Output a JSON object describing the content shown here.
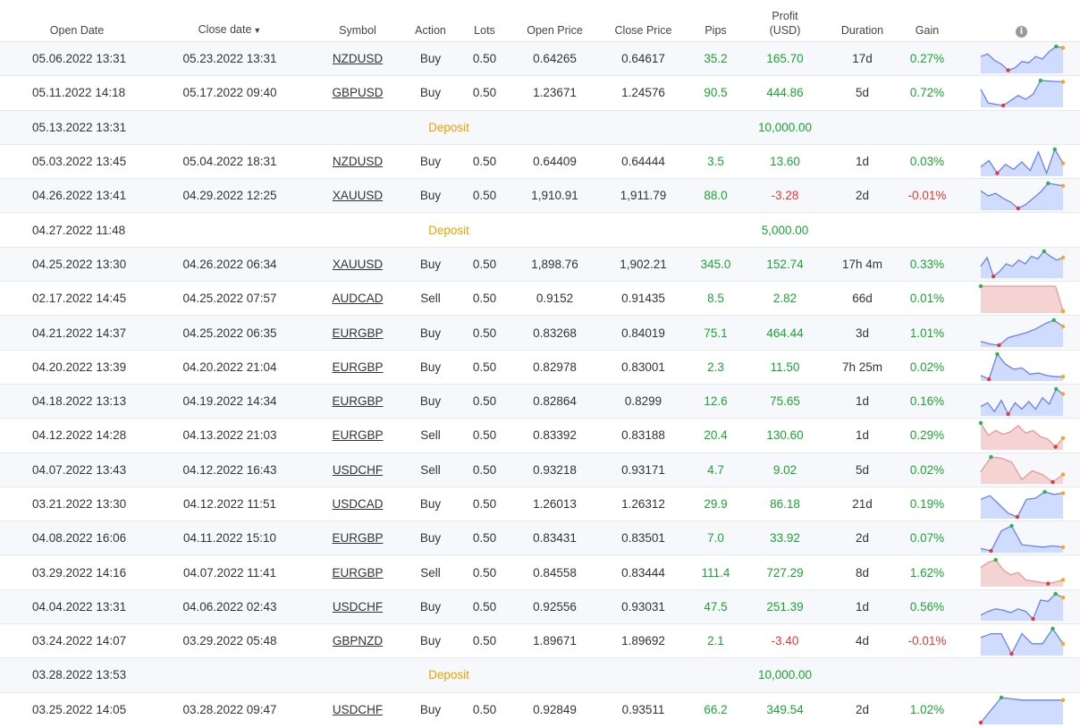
{
  "headers": {
    "open_date": "Open Date",
    "close_date": "Close date",
    "sort_glyph": "▼",
    "symbol": "Symbol",
    "action": "Action",
    "lots": "Lots",
    "open_price": "Open Price",
    "close_price": "Close Price",
    "pips": "Pips",
    "profit_l1": "Profit",
    "profit_l2": "(USD)",
    "duration": "Duration",
    "gain": "Gain",
    "info_glyph": "i"
  },
  "colors": {
    "positive": "#1aa532",
    "negative": "#e53935",
    "deposit": "#f2a000",
    "spark_up_fill": "#cfdcff",
    "spark_up_line": "#6a82e8",
    "spark_down_fill": "#f5d3d3",
    "spark_down_line": "#e29b9b"
  },
  "rows": [
    {
      "type": "trade",
      "open": "05.06.2022 13:31",
      "close": "05.23.2022 13:31",
      "symbol": "NZDUSD",
      "action": "Buy",
      "lots": "0.50",
      "open_price": "0.64265",
      "close_price": "0.64617",
      "pips": "35.2",
      "profit": "165.70",
      "duration": "17d",
      "gain": "0.27%",
      "neg": false,
      "spark": [
        0.4,
        0.3,
        0.55,
        0.7,
        0.95,
        0.85,
        0.6,
        0.65,
        0.4,
        0.5,
        0.2,
        0.0,
        0.05
      ],
      "spark_down": false
    },
    {
      "type": "trade",
      "open": "05.11.2022 14:18",
      "close": "05.17.2022 09:40",
      "symbol": "GBPUSD",
      "action": "Buy",
      "lots": "0.50",
      "open_price": "1.23671",
      "close_price": "1.24576",
      "pips": "90.5",
      "profit": "444.86",
      "duration": "5d",
      "gain": "0.72%",
      "neg": false,
      "spark": [
        0.35,
        0.9,
        0.95,
        1.0,
        0.8,
        0.6,
        0.75,
        0.55,
        0.0,
        0.02,
        0.04,
        0.05
      ],
      "spark_down": false
    },
    {
      "type": "deposit",
      "date": "05.13.2022 13:31",
      "label": "Deposit",
      "amount": "10,000.00"
    },
    {
      "type": "trade",
      "open": "05.03.2022 13:45",
      "close": "05.04.2022 18:31",
      "symbol": "NZDUSD",
      "action": "Buy",
      "lots": "0.50",
      "open_price": "0.64409",
      "close_price": "0.64444",
      "pips": "3.5",
      "profit": "13.60",
      "duration": "1d",
      "gain": "0.03%",
      "neg": false,
      "spark": [
        0.7,
        0.45,
        0.95,
        0.6,
        0.8,
        0.5,
        0.85,
        0.1,
        0.95,
        0.0,
        0.55
      ],
      "spark_down": false
    },
    {
      "type": "trade",
      "open": "04.26.2022 13:41",
      "close": "04.29.2022 12:25",
      "symbol": "XAUUSD",
      "action": "Buy",
      "lots": "0.50",
      "open_price": "1,910.91",
      "close_price": "1,911.79",
      "pips": "88.0",
      "profit": "-3.28",
      "duration": "2d",
      "gain": "-0.01%",
      "neg": true,
      "spark": [
        0.3,
        0.5,
        0.4,
        0.6,
        0.75,
        1.0,
        0.85,
        0.6,
        0.35,
        0.0,
        0.05,
        0.1
      ],
      "spark_down": false
    },
    {
      "type": "deposit",
      "date": "04.27.2022 11:48",
      "label": "Deposit",
      "amount": "5,000.00"
    },
    {
      "type": "trade",
      "open": "04.25.2022 13:30",
      "close": "04.26.2022 06:34",
      "symbol": "XAUUSD",
      "action": "Buy",
      "lots": "0.50",
      "open_price": "1,898.76",
      "close_price": "1,902.21",
      "pips": "345.0",
      "profit": "152.74",
      "duration": "17h 4m",
      "gain": "0.33%",
      "neg": false,
      "spark": [
        0.6,
        0.25,
        1.0,
        0.8,
        0.5,
        0.6,
        0.35,
        0.5,
        0.2,
        0.3,
        0.0,
        0.2,
        0.35,
        0.25
      ],
      "spark_down": false
    },
    {
      "type": "trade",
      "open": "02.17.2022 14:45",
      "close": "04.25.2022 07:57",
      "symbol": "AUDCAD",
      "action": "Sell",
      "lots": "0.50",
      "open_price": "0.9152",
      "close_price": "0.91435",
      "pips": "8.5",
      "profit": "2.82",
      "duration": "66d",
      "gain": "0.01%",
      "neg": false,
      "spark": [
        0.0,
        0.0,
        0.0,
        0.0,
        0.0,
        0.0,
        0.0,
        0.0,
        0.0,
        0.0,
        0.0,
        1.0
      ],
      "spark_down": true
    },
    {
      "type": "trade",
      "open": "04.21.2022 14:37",
      "close": "04.25.2022 06:35",
      "symbol": "EURGBP",
      "action": "Buy",
      "lots": "0.50",
      "open_price": "0.83268",
      "close_price": "0.84019",
      "pips": "75.1",
      "profit": "464.44",
      "duration": "3d",
      "gain": "1.01%",
      "neg": false,
      "spark": [
        0.85,
        0.95,
        1.0,
        0.7,
        0.6,
        0.5,
        0.35,
        0.15,
        0.0,
        0.25
      ],
      "spark_down": false
    },
    {
      "type": "trade",
      "open": "04.20.2022 13:39",
      "close": "04.20.2022 21:04",
      "symbol": "EURGBP",
      "action": "Buy",
      "lots": "0.50",
      "open_price": "0.82978",
      "close_price": "0.83001",
      "pips": "2.3",
      "profit": "11.50",
      "duration": "7h 25m",
      "gain": "0.02%",
      "neg": false,
      "spark": [
        0.85,
        1.0,
        0.0,
        0.4,
        0.6,
        0.55,
        0.8,
        0.75,
        0.85,
        0.9,
        0.9
      ],
      "spark_down": false
    },
    {
      "type": "trade",
      "open": "04.18.2022 13:13",
      "close": "04.19.2022 14:34",
      "symbol": "EURGBP",
      "action": "Buy",
      "lots": "0.50",
      "open_price": "0.82864",
      "close_price": "0.8299",
      "pips": "12.6",
      "profit": "75.65",
      "duration": "1d",
      "gain": "0.16%",
      "neg": false,
      "spark": [
        0.7,
        0.55,
        0.9,
        0.45,
        1.0,
        0.55,
        0.8,
        0.5,
        0.8,
        0.35,
        0.6,
        0.0,
        0.2
      ],
      "spark_down": false
    },
    {
      "type": "trade",
      "open": "04.12.2022 14:28",
      "close": "04.13.2022 21:03",
      "symbol": "EURGBP",
      "action": "Sell",
      "lots": "0.50",
      "open_price": "0.83392",
      "close_price": "0.83188",
      "pips": "20.4",
      "profit": "130.60",
      "duration": "1d",
      "gain": "0.29%",
      "neg": false,
      "spark": [
        0.0,
        0.5,
        0.3,
        0.45,
        0.35,
        0.1,
        0.4,
        0.3,
        0.55,
        0.65,
        0.95,
        0.6
      ],
      "spark_down": true
    },
    {
      "type": "trade",
      "open": "04.07.2022 13:43",
      "close": "04.12.2022 16:43",
      "symbol": "USDCHF",
      "action": "Sell",
      "lots": "0.50",
      "open_price": "0.93218",
      "close_price": "0.93171",
      "pips": "4.7",
      "profit": "9.02",
      "duration": "5d",
      "gain": "0.02%",
      "neg": false,
      "spark": [
        0.6,
        0.0,
        0.05,
        0.2,
        0.9,
        0.55,
        0.7,
        1.0,
        0.7
      ],
      "spark_down": true
    },
    {
      "type": "trade",
      "open": "03.21.2022 13:30",
      "close": "04.12.2022 11:51",
      "symbol": "USDCAD",
      "action": "Buy",
      "lots": "0.50",
      "open_price": "1.26013",
      "close_price": "1.26312",
      "pips": "29.9",
      "profit": "86.18",
      "duration": "21d",
      "gain": "0.19%",
      "neg": false,
      "spark": [
        0.3,
        0.15,
        0.5,
        0.85,
        1.0,
        0.3,
        0.25,
        0.0,
        0.1,
        0.05
      ],
      "spark_down": false
    },
    {
      "type": "trade",
      "open": "04.08.2022 16:06",
      "close": "04.11.2022 15:10",
      "symbol": "EURGBP",
      "action": "Buy",
      "lots": "0.50",
      "open_price": "0.83431",
      "close_price": "0.83501",
      "pips": "7.0",
      "profit": "33.92",
      "duration": "2d",
      "gain": "0.07%",
      "neg": false,
      "spark": [
        0.9,
        1.0,
        0.2,
        0.0,
        0.75,
        0.8,
        0.85,
        0.8,
        0.85
      ],
      "spark_down": false
    },
    {
      "type": "trade",
      "open": "03.29.2022 14:16",
      "close": "04.07.2022 11:41",
      "symbol": "EURGBP",
      "action": "Sell",
      "lots": "0.50",
      "open_price": "0.84558",
      "close_price": "0.83444",
      "pips": "111.4",
      "profit": "727.29",
      "duration": "8d",
      "gain": "1.62%",
      "neg": false,
      "spark": [
        0.3,
        0.1,
        0.0,
        0.4,
        0.6,
        0.5,
        0.8,
        0.85,
        0.9,
        0.95,
        0.88,
        0.8
      ],
      "spark_down": true
    },
    {
      "type": "trade",
      "open": "04.04.2022 13:31",
      "close": "04.06.2022 02:43",
      "symbol": "USDCHF",
      "action": "Buy",
      "lots": "0.50",
      "open_price": "0.92556",
      "close_price": "0.93031",
      "pips": "47.5",
      "profit": "251.39",
      "duration": "1d",
      "gain": "0.56%",
      "neg": false,
      "spark": [
        0.85,
        0.7,
        0.6,
        0.65,
        0.75,
        0.6,
        0.7,
        1.0,
        0.25,
        0.3,
        0.0,
        0.15
      ],
      "spark_down": false
    },
    {
      "type": "trade",
      "open": "03.24.2022 14:07",
      "close": "03.29.2022 05:48",
      "symbol": "GBPNZD",
      "action": "Buy",
      "lots": "0.50",
      "open_price": "1.89671",
      "close_price": "1.89692",
      "pips": "2.1",
      "profit": "-3.40",
      "duration": "4d",
      "gain": "-0.01%",
      "neg": true,
      "spark": [
        0.35,
        0.2,
        0.2,
        1.0,
        0.2,
        0.6,
        0.6,
        0.0,
        0.6
      ],
      "spark_down": false
    },
    {
      "type": "deposit",
      "date": "03.28.2022 13:53",
      "label": "Deposit",
      "amount": "10,000.00"
    },
    {
      "type": "trade",
      "open": "03.25.2022 14:05",
      "close": "03.28.2022 09:47",
      "symbol": "USDCHF",
      "action": "Buy",
      "lots": "0.50",
      "open_price": "0.92849",
      "close_price": "0.93511",
      "pips": "66.2",
      "profit": "349.54",
      "duration": "2d",
      "gain": "1.02%",
      "neg": false,
      "spark": [
        1.0,
        0.0,
        0.1,
        0.1,
        0.1
      ],
      "spark_down": false
    }
  ]
}
